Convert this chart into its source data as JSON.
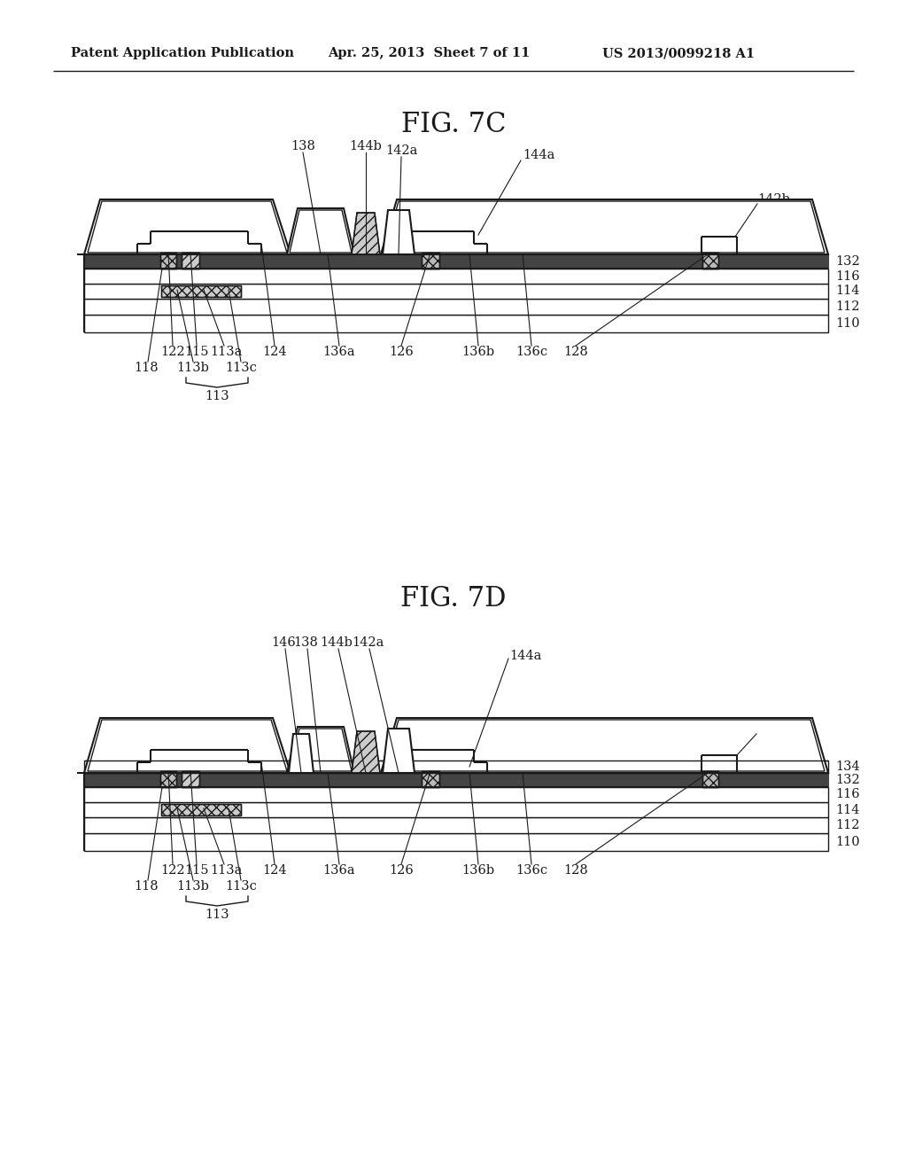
{
  "bg_color": "#ffffff",
  "line_color": "#1a1a1a",
  "fig_width": 10.24,
  "fig_height": 13.2,
  "header_text": "Patent Application Publication",
  "header_date": "Apr. 25, 2013  Sheet 7 of 11",
  "header_patent": "US 2013/0099218 A1",
  "fig7c_title": "FIG. 7C",
  "fig7d_title": "FIG. 7D",
  "title_fontsize": 22,
  "label_fontsize": 10.5,
  "header_fontsize": 10.5
}
